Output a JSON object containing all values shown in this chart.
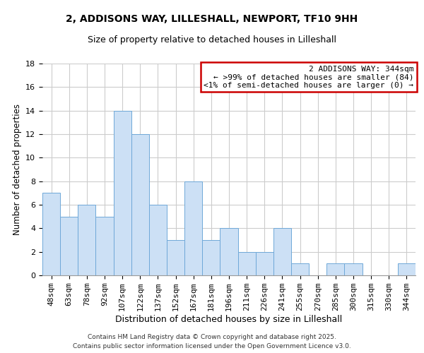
{
  "title_line1": "2, ADDISONS WAY, LILLESHALL, NEWPORT, TF10 9HH",
  "title_line2": "Size of property relative to detached houses in Lilleshall",
  "xlabel": "Distribution of detached houses by size in Lilleshall",
  "ylabel": "Number of detached properties",
  "bar_labels": [
    "48sqm",
    "63sqm",
    "78sqm",
    "92sqm",
    "107sqm",
    "122sqm",
    "137sqm",
    "152sqm",
    "167sqm",
    "181sqm",
    "196sqm",
    "211sqm",
    "226sqm",
    "241sqm",
    "255sqm",
    "270sqm",
    "285sqm",
    "300sqm",
    "315sqm",
    "330sqm",
    "344sqm"
  ],
  "bar_values": [
    7,
    5,
    6,
    5,
    14,
    12,
    6,
    3,
    8,
    3,
    4,
    2,
    2,
    4,
    1,
    0,
    1,
    1,
    0,
    0,
    1
  ],
  "bar_color": "#cce0f5",
  "bar_edge_color": "#6fa8d8",
  "annotation_box_text": "2 ADDISONS WAY: 344sqm\n← >99% of detached houses are smaller (84)\n<1% of semi-detached houses are larger (0) →",
  "annotation_box_color": "#cc0000",
  "ylim": [
    0,
    18
  ],
  "yticks": [
    0,
    2,
    4,
    6,
    8,
    10,
    12,
    14,
    16,
    18
  ],
  "footer_line1": "Contains HM Land Registry data © Crown copyright and database right 2025.",
  "footer_line2": "Contains public sector information licensed under the Open Government Licence v3.0.",
  "background_color": "#ffffff",
  "grid_color": "#cccccc",
  "title_fontsize": 10,
  "subtitle_fontsize": 9,
  "xlabel_fontsize": 9,
  "ylabel_fontsize": 8.5,
  "tick_fontsize": 8,
  "footer_fontsize": 6.5,
  "annot_fontsize": 8
}
